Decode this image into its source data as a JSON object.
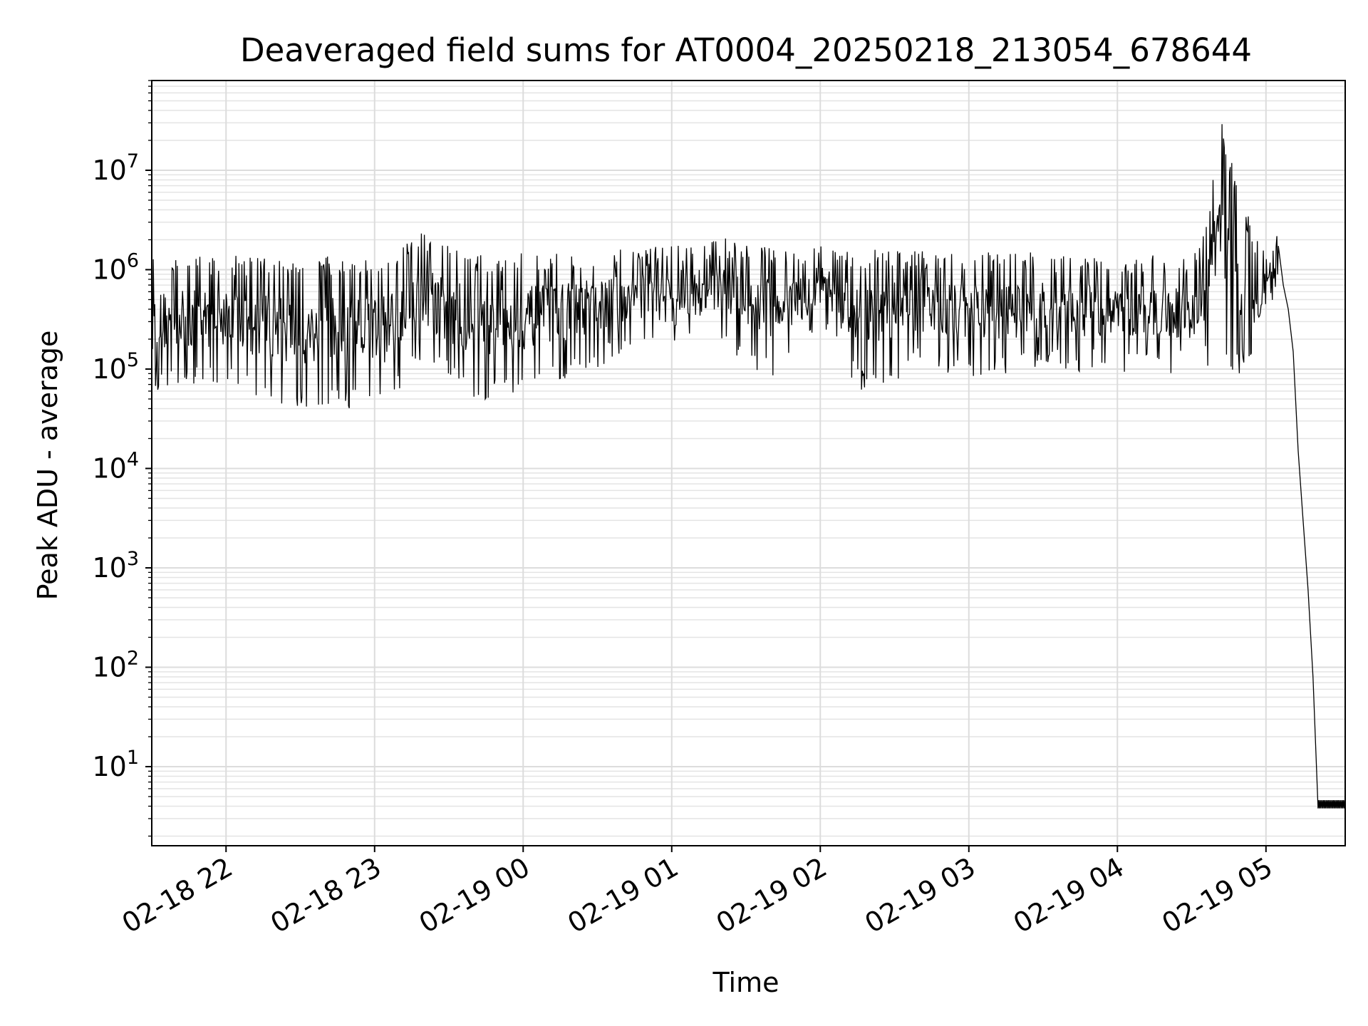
{
  "chart_data": {
    "type": "line",
    "title": "Deaveraged field sums for AT0004_20250218_213054_678644",
    "xlabel": "Time",
    "ylabel": "Peak ADU - average",
    "yscale": "log",
    "ylim": [
      1.6,
      80000000
    ],
    "xlim": [
      "2025-02-18 21:30",
      "2025-02-19 05:32"
    ],
    "grid": true,
    "x_ticks": [
      {
        "time": "2025-02-18 22:00",
        "label": "02-18 22"
      },
      {
        "time": "2025-02-18 23:00",
        "label": "02-18 23"
      },
      {
        "time": "2025-02-19 00:00",
        "label": "02-19 00"
      },
      {
        "time": "2025-02-19 01:00",
        "label": "02-19 01"
      },
      {
        "time": "2025-02-19 02:00",
        "label": "02-19 02"
      },
      {
        "time": "2025-02-19 03:00",
        "label": "02-19 03"
      },
      {
        "time": "2025-02-19 04:00",
        "label": "02-19 04"
      },
      {
        "time": "2025-02-19 05:00",
        "label": "02-19 05"
      }
    ],
    "y_ticks": [
      {
        "value": 10,
        "base": "10",
        "exp": "1"
      },
      {
        "value": 100,
        "base": "10",
        "exp": "2"
      },
      {
        "value": 1000,
        "base": "10",
        "exp": "3"
      },
      {
        "value": 10000,
        "base": "10",
        "exp": "4"
      },
      {
        "value": 100000,
        "base": "10",
        "exp": "5"
      },
      {
        "value": 1000000,
        "base": "10",
        "exp": "6"
      },
      {
        "value": 10000000,
        "base": "10",
        "exp": "7"
      }
    ],
    "series": [
      {
        "color": "#000000",
        "envelope": [
          {
            "time": "2025-02-18 21:30",
            "low": 60000,
            "high": 1300000
          },
          {
            "time": "2025-02-18 22:00",
            "low": 70000,
            "high": 1400000
          },
          {
            "time": "2025-02-18 22:20",
            "low": 38000,
            "high": 1300000
          },
          {
            "time": "2025-02-18 22:45",
            "low": 35000,
            "high": 1400000
          },
          {
            "time": "2025-02-18 23:05",
            "low": 40000,
            "high": 1400000
          },
          {
            "time": "2025-02-18 23:17",
            "low": 120000,
            "high": 2600000
          },
          {
            "time": "2025-02-18 23:40",
            "low": 45000,
            "high": 1500000
          },
          {
            "time": "2025-02-19 00:00",
            "low": 60000,
            "high": 1500000
          },
          {
            "time": "2025-02-19 00:30",
            "low": 100000,
            "high": 1600000
          },
          {
            "time": "2025-02-19 00:50",
            "low": 200000,
            "high": 1700000
          },
          {
            "time": "2025-02-19 01:20",
            "low": 150000,
            "high": 2100000
          },
          {
            "time": "2025-02-19 01:40",
            "low": 80000,
            "high": 1700000
          },
          {
            "time": "2025-02-19 02:00",
            "low": 200000,
            "high": 1900000
          },
          {
            "time": "2025-02-19 02:18",
            "low": 55000,
            "high": 1600000
          },
          {
            "time": "2025-02-19 02:40",
            "low": 100000,
            "high": 1600000
          },
          {
            "time": "2025-02-19 03:00",
            "low": 80000,
            "high": 1500000
          },
          {
            "time": "2025-02-19 03:30",
            "low": 90000,
            "high": 1500000
          },
          {
            "time": "2025-02-19 04:00",
            "low": 90000,
            "high": 1400000
          },
          {
            "time": "2025-02-19 04:30",
            "low": 90000,
            "high": 1400000
          },
          {
            "time": "2025-02-19 04:37",
            "low": 100000,
            "high": 5000000
          },
          {
            "time": "2025-02-19 04:42",
            "low": 80000,
            "high": 35000000
          },
          {
            "time": "2025-02-19 04:45",
            "low": 90000,
            "high": 15000000
          },
          {
            "time": "2025-02-19 04:55",
            "low": 90000,
            "high": 2300000
          },
          {
            "time": "2025-02-19 05:00",
            "low": 300000,
            "high": 1500000
          },
          {
            "time": "2025-02-19 05:05",
            "low": 500000,
            "high": 2800000
          }
        ],
        "decline": [
          {
            "time": "2025-02-19 05:07",
            "value": 700000
          },
          {
            "time": "2025-02-19 05:09",
            "value": 400000
          },
          {
            "time": "2025-02-19 05:11",
            "value": 150000
          },
          {
            "time": "2025-02-19 05:13",
            "value": 15000
          },
          {
            "time": "2025-02-19 05:15",
            "value": 3000
          },
          {
            "time": "2025-02-19 05:17",
            "value": 600
          },
          {
            "time": "2025-02-19 05:19",
            "value": 80
          },
          {
            "time": "2025-02-19 05:21",
            "value": 4
          }
        ],
        "floor": {
          "start": "2025-02-19 05:21",
          "end": "2025-02-19 05:32",
          "low": 3.8,
          "high": 4.6
        }
      }
    ]
  }
}
